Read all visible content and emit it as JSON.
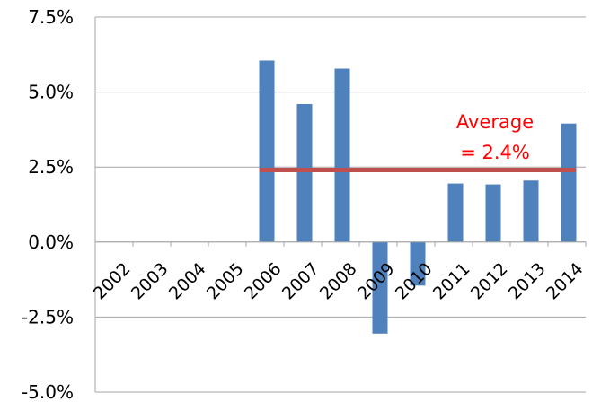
{
  "chart_data": {
    "type": "bar",
    "title": "",
    "xlabel": "",
    "ylabel": "",
    "categories": [
      "2002",
      "2003",
      "2004",
      "2005",
      "2006",
      "2007",
      "2008",
      "2009",
      "2010",
      "2011",
      "2012",
      "2013",
      "2014"
    ],
    "series": [
      {
        "values": [
          null,
          null,
          null,
          null,
          6.05,
          4.6,
          5.78,
          -3.05,
          -1.45,
          1.95,
          1.92,
          2.05,
          3.95
        ]
      }
    ],
    "ylim": [
      -5.0,
      7.5
    ],
    "y_ticks": [
      7.5,
      5.0,
      2.5,
      0.0,
      -2.5,
      -5.0
    ],
    "y_tick_labels": [
      "7.5%",
      "5.0%",
      "2.5%",
      "0.0%",
      "-2.5%",
      "-5.0%"
    ],
    "grid": true,
    "legend": "none",
    "average": {
      "value": 2.4,
      "label_line1": "Average",
      "label_line2": "= 2.4%",
      "x_start_category": "2006",
      "x_end_category": "2014"
    },
    "colors": {
      "bar": "#4F81BD",
      "average_line": "#C0504D",
      "annotation_text": "#FF0000",
      "grid": "#A6A6A6",
      "axis": "#A6A6A6"
    }
  }
}
